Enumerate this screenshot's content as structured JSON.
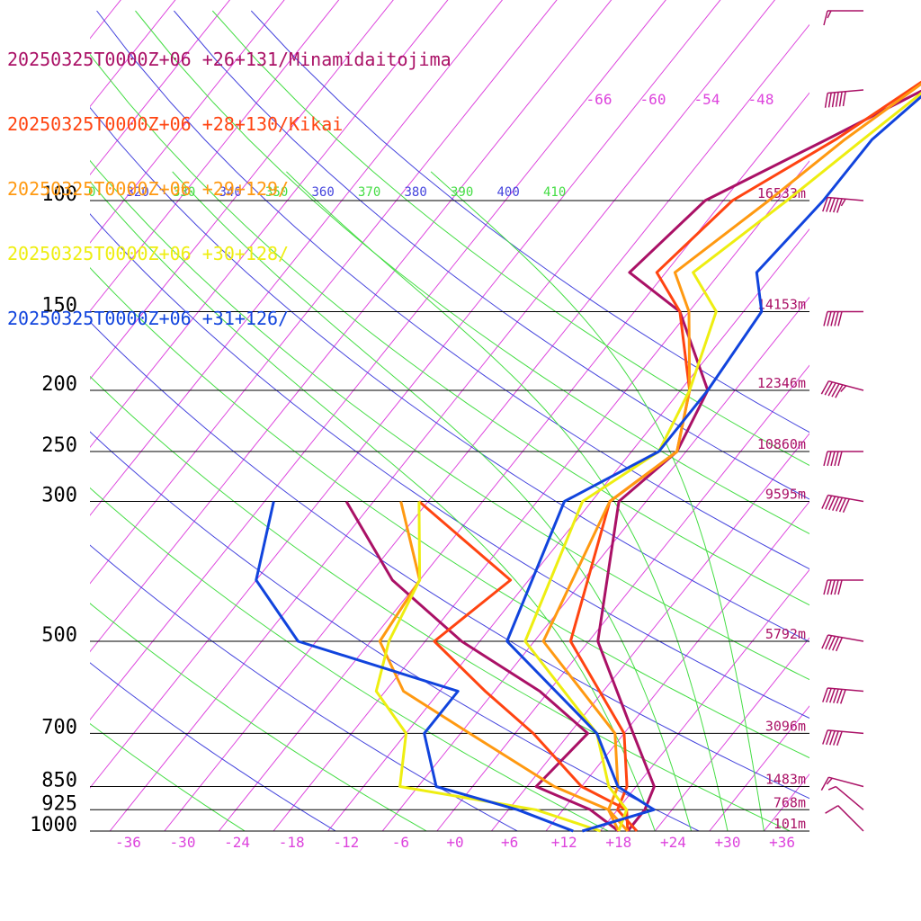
{
  "chart_data": {
    "type": "line",
    "title": "",
    "xlabel": "",
    "ylabel": "",
    "xlim": [
      -40,
      40
    ],
    "ylim": [
      1000,
      100
    ],
    "yscale": "log",
    "grid": true,
    "legend_position": "top-left",
    "pressure_levels": [
      {
        "p": 100,
        "label": "100",
        "height": "16533m"
      },
      {
        "p": 150,
        "label": "150",
        "height": "14153m"
      },
      {
        "p": 200,
        "label": "200",
        "height": "12346m"
      },
      {
        "p": 250,
        "label": "250",
        "height": "10860m"
      },
      {
        "p": 300,
        "label": "300",
        "height": "9595m"
      },
      {
        "p": 500,
        "label": "500",
        "height": "5792m"
      },
      {
        "p": 700,
        "label": "700",
        "height": "3096m"
      },
      {
        "p": 850,
        "label": "850",
        "height": "1483m"
      },
      {
        "p": 925,
        "label": "925",
        "height": "768m"
      },
      {
        "p": 1000,
        "label": "1000",
        "height": "101m"
      }
    ],
    "x_ticks": [
      "-36",
      "-30",
      "-24",
      "-18",
      "-12",
      "-6",
      "+0",
      "+6",
      "+12",
      "+18",
      "+24",
      "+30",
      "+36"
    ],
    "x_tick_values": [
      -36,
      -30,
      -24,
      -18,
      -12,
      -6,
      0,
      6,
      12,
      18,
      24,
      30,
      36
    ],
    "isotherm_labels": [
      "-66",
      "-60",
      "-54",
      "-48"
    ],
    "theta_labels": [
      {
        "text": "0",
        "color": "#44dd44"
      },
      {
        "text": "320",
        "color": "#4444dd"
      },
      {
        "text": "330",
        "color": "#44dd44"
      },
      {
        "text": "340",
        "color": "#4444dd"
      },
      {
        "text": "350",
        "color": "#44dd44"
      },
      {
        "text": "360",
        "color": "#4444dd"
      },
      {
        "text": "370",
        "color": "#44dd44"
      },
      {
        "text": "380",
        "color": "#4444dd"
      },
      {
        "text": "390",
        "color": "#44dd44"
      },
      {
        "text": "400",
        "color": "#4444dd"
      },
      {
        "text": "410",
        "color": "#44dd44"
      }
    ],
    "series": [
      {
        "name": "20250325T0000Z+06 +26+131/Minamidaitojima",
        "color": "#aa1166",
        "temperature": [
          [
            1000,
            19
          ],
          [
            925,
            19
          ],
          [
            850,
            18
          ],
          [
            700,
            11
          ],
          [
            500,
            -1
          ],
          [
            300,
            -11
          ],
          [
            250,
            -9
          ],
          [
            200,
            -11
          ],
          [
            150,
            -21
          ],
          [
            130,
            -30
          ],
          [
            100,
            -28
          ],
          [
            80,
            -20
          ],
          [
            60,
            -10
          ]
        ],
        "dewpoint": [
          [
            1000,
            18
          ],
          [
            925,
            13
          ],
          [
            850,
            5
          ],
          [
            700,
            6
          ],
          [
            600,
            -3
          ],
          [
            500,
            -16
          ],
          [
            400,
            -29
          ],
          [
            300,
            -41
          ]
        ]
      },
      {
        "name": "20250325T0000Z+06 +28+130/Kikai",
        "color": "#ff4411",
        "temperature": [
          [
            1000,
            20
          ],
          [
            925,
            16
          ],
          [
            850,
            15
          ],
          [
            700,
            10
          ],
          [
            500,
            -4
          ],
          [
            300,
            -12
          ],
          [
            250,
            -9
          ],
          [
            200,
            -13
          ],
          [
            150,
            -21
          ],
          [
            130,
            -27
          ],
          [
            100,
            -25
          ],
          [
            80,
            -19
          ],
          [
            60,
            -13
          ]
        ],
        "dewpoint": [
          [
            1000,
            19
          ],
          [
            925,
            17
          ],
          [
            850,
            10
          ],
          [
            700,
            0
          ],
          [
            600,
            -9
          ],
          [
            500,
            -19
          ],
          [
            400,
            -16
          ],
          [
            300,
            -33
          ]
        ]
      },
      {
        "name": "20250325T0000Z+06 +29+129/",
        "color": "#ff9911",
        "temperature": [
          [
            1000,
            19
          ],
          [
            925,
            15
          ],
          [
            850,
            14
          ],
          [
            700,
            9
          ],
          [
            500,
            -7
          ],
          [
            300,
            -12
          ],
          [
            250,
            -9
          ],
          [
            200,
            -13
          ],
          [
            150,
            -20
          ],
          [
            130,
            -25
          ],
          [
            100,
            -21
          ],
          [
            80,
            -18
          ],
          [
            60,
            -13
          ]
        ],
        "dewpoint": [
          [
            1000,
            18
          ],
          [
            925,
            15
          ],
          [
            850,
            7
          ],
          [
            700,
            -7
          ],
          [
            600,
            -18
          ],
          [
            500,
            -25
          ],
          [
            400,
            -26
          ],
          [
            300,
            -35
          ]
        ]
      },
      {
        "name": "20250325T0000Z+06 +30+128/",
        "color": "#eeee11",
        "temperature": [
          [
            1000,
            18
          ],
          [
            925,
            17
          ],
          [
            850,
            13
          ],
          [
            700,
            7
          ],
          [
            500,
            -9
          ],
          [
            300,
            -15
          ],
          [
            250,
            -11
          ],
          [
            200,
            -13
          ],
          [
            150,
            -17
          ],
          [
            130,
            -23
          ],
          [
            100,
            -19
          ],
          [
            80,
            -16
          ],
          [
            60,
            -12
          ]
        ],
        "dewpoint": [
          [
            1000,
            16
          ],
          [
            925,
            7
          ],
          [
            850,
            -10
          ],
          [
            700,
            -14
          ],
          [
            600,
            -21
          ],
          [
            500,
            -24
          ],
          [
            400,
            -26
          ],
          [
            300,
            -33
          ]
        ]
      },
      {
        "name": "20250325T0000Z+06 +31+126/",
        "color": "#1144dd",
        "temperature": [
          [
            1000,
            14
          ],
          [
            925,
            20
          ],
          [
            850,
            14
          ],
          [
            700,
            7
          ],
          [
            500,
            -11
          ],
          [
            300,
            -17
          ],
          [
            250,
            -11
          ],
          [
            200,
            -11
          ],
          [
            150,
            -12
          ],
          [
            130,
            -16
          ],
          [
            100,
            -15
          ],
          [
            80,
            -15
          ],
          [
            60,
            -12
          ]
        ],
        "dewpoint": [
          [
            1000,
            13
          ],
          [
            925,
            5
          ],
          [
            850,
            -6
          ],
          [
            700,
            -12
          ],
          [
            600,
            -12
          ],
          [
            500,
            -34
          ],
          [
            400,
            -44
          ],
          [
            300,
            -49
          ]
        ]
      }
    ],
    "wind_barbs": [
      {
        "p": 60,
        "speed": 15,
        "dir": 270
      },
      {
        "p": 80,
        "speed": 60,
        "dir": 275
      },
      {
        "p": 100,
        "speed": 55,
        "dir": 265
      },
      {
        "p": 150,
        "speed": 50,
        "dir": 270
      },
      {
        "p": 200,
        "speed": 55,
        "dir": 255
      },
      {
        "p": 250,
        "speed": 50,
        "dir": 270
      },
      {
        "p": 300,
        "speed": 70,
        "dir": 260
      },
      {
        "p": 400,
        "speed": 50,
        "dir": 270
      },
      {
        "p": 500,
        "speed": 50,
        "dir": 260
      },
      {
        "p": 600,
        "speed": 60,
        "dir": 265
      },
      {
        "p": 700,
        "speed": 50,
        "dir": 265
      },
      {
        "p": 850,
        "speed": 15,
        "dir": 255
      },
      {
        "p": 925,
        "speed": 5,
        "dir": 230
      },
      {
        "p": 1000,
        "speed": 10,
        "dir": 225
      }
    ]
  }
}
